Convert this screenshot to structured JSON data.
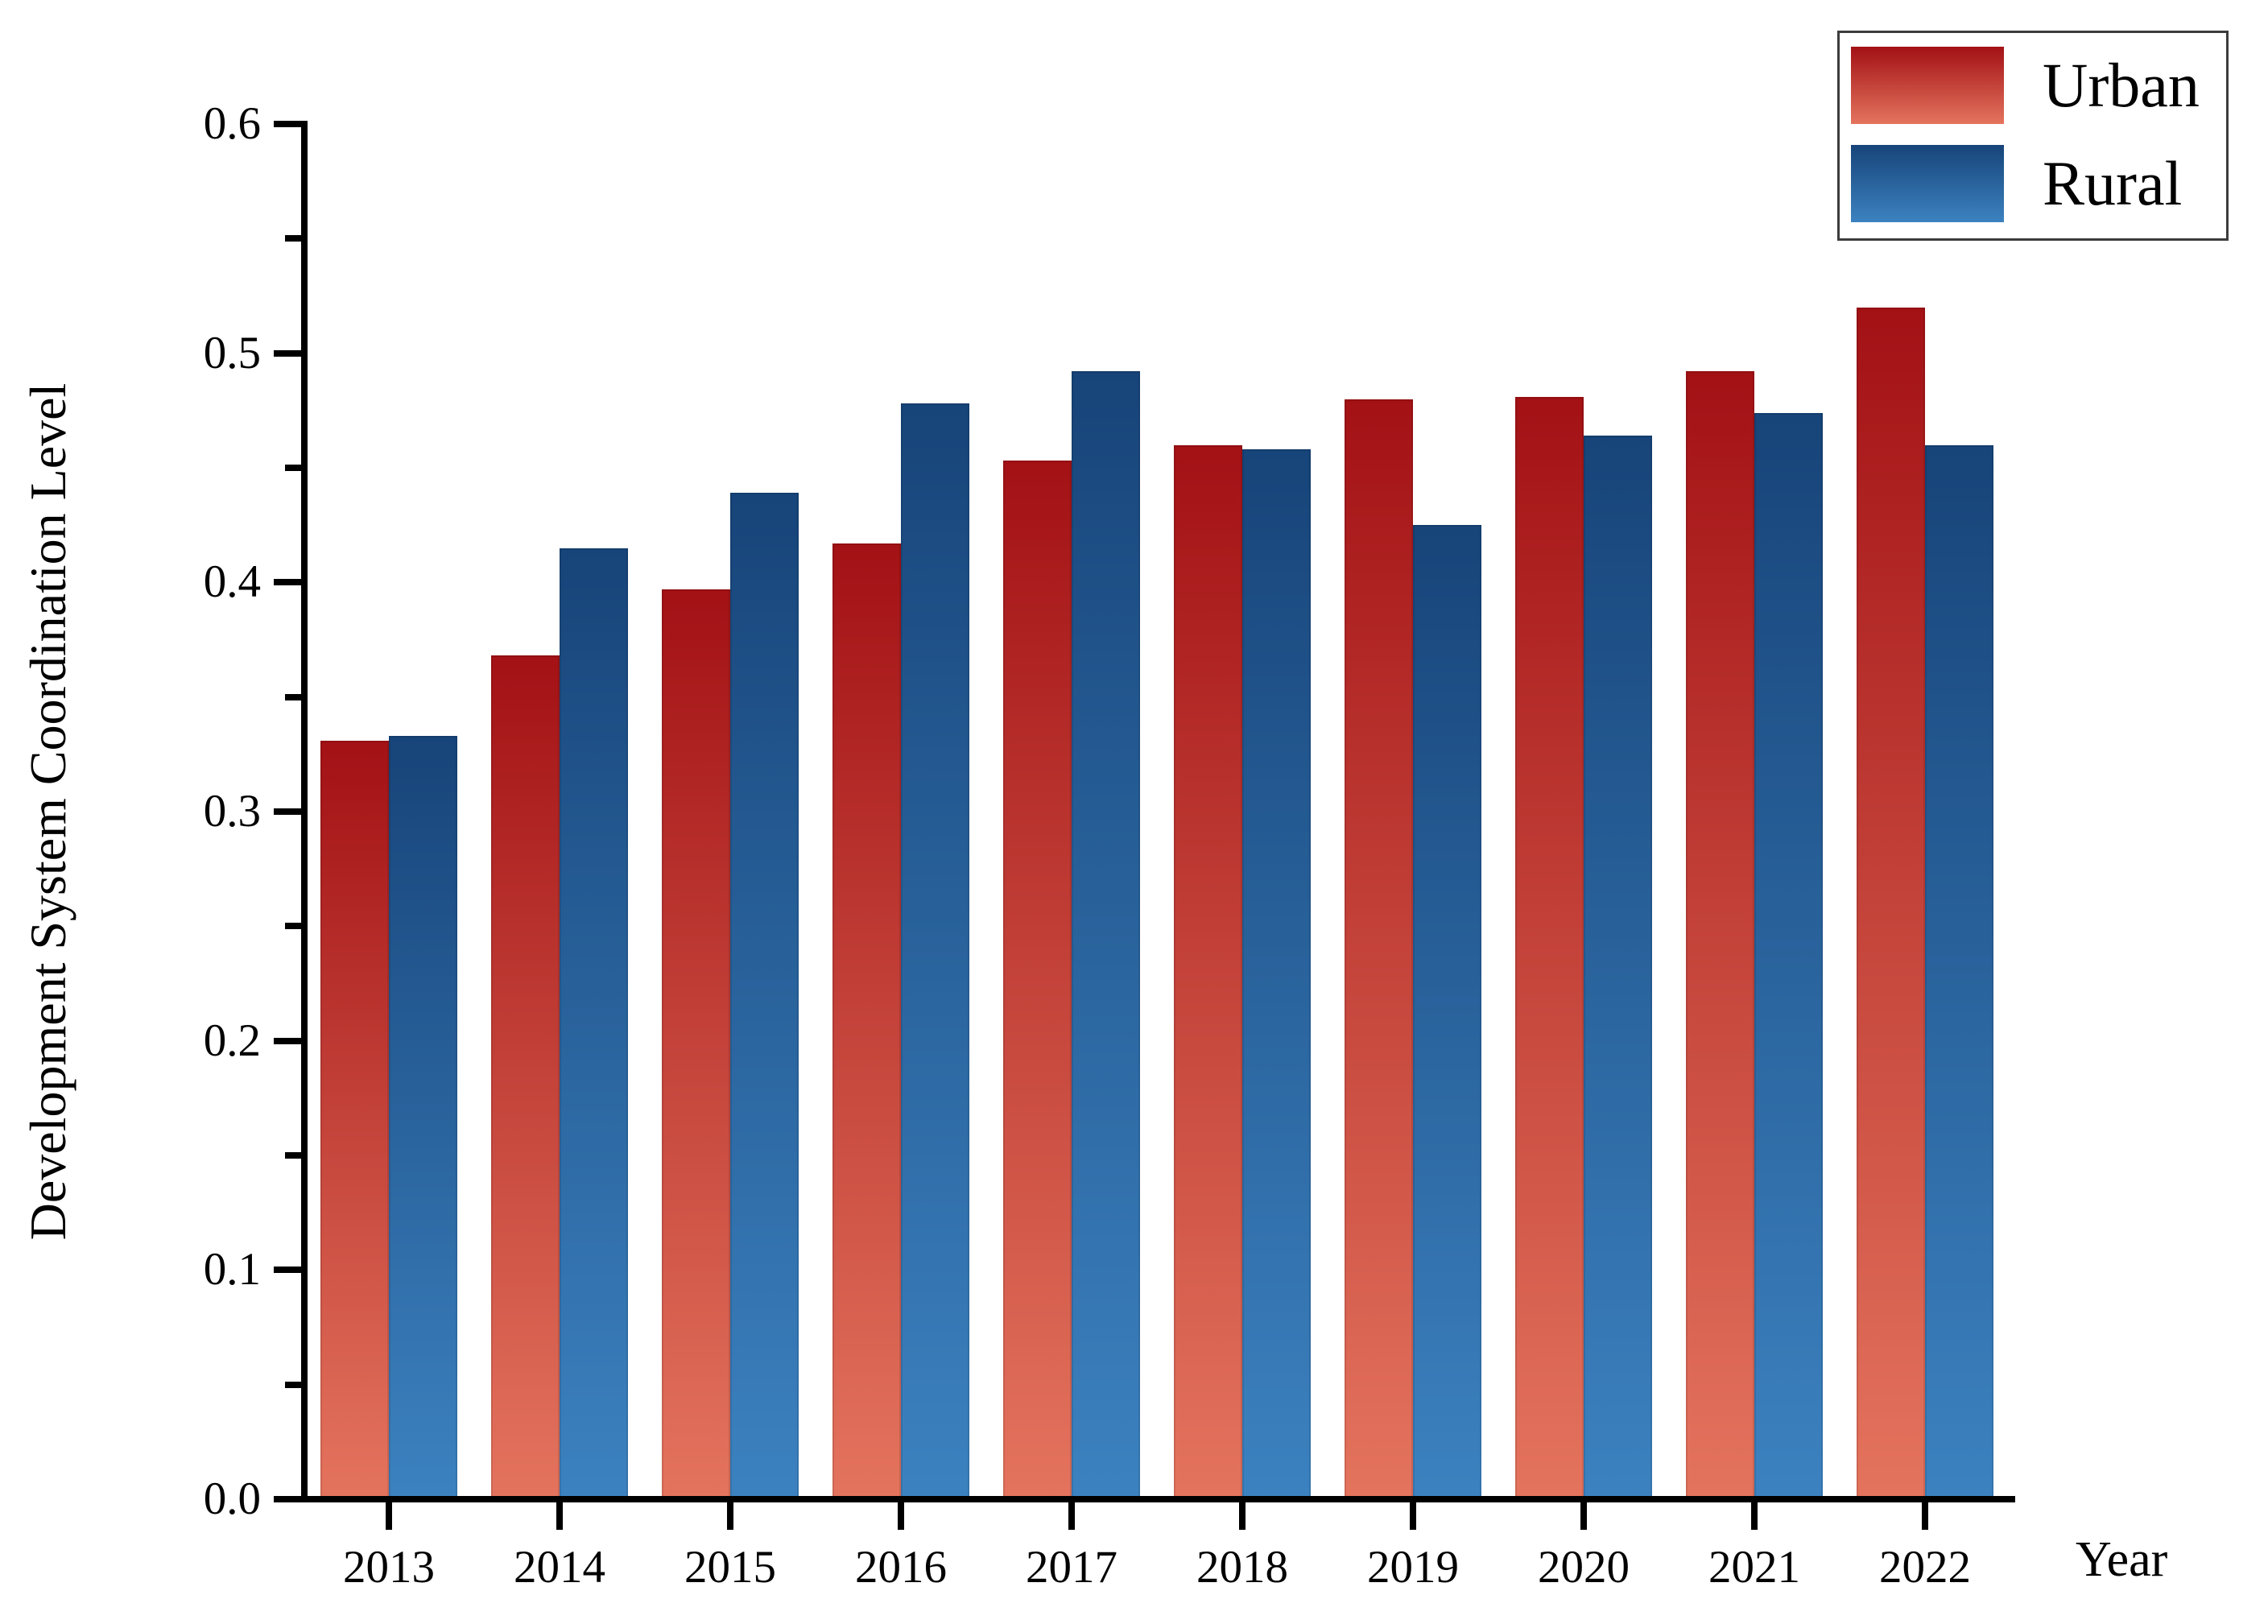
{
  "page": {
    "background": "#ffffff"
  },
  "chart_data": {
    "type": "bar",
    "title": "",
    "xlabel": "Year",
    "ylabel": "Development System Coordination Level",
    "categories": [
      "2013",
      "2014",
      "2015",
      "2016",
      "2017",
      "2018",
      "2019",
      "2020",
      "2021",
      "2022"
    ],
    "series": [
      {
        "name": "Urban",
        "values": [
          0.331,
          0.368,
          0.397,
          0.417,
          0.453,
          0.46,
          0.48,
          0.481,
          0.492,
          0.52
        ],
        "gradient_top": "#A31115",
        "gradient_bottom": "#E4745E"
      },
      {
        "name": "Rural",
        "values": [
          0.333,
          0.415,
          0.439,
          0.478,
          0.492,
          0.458,
          0.425,
          0.464,
          0.474,
          0.46
        ],
        "gradient_top": "#174479",
        "gradient_bottom": "#3C82C0"
      }
    ],
    "ylim": [
      0.0,
      0.6
    ],
    "ytick_labels": [
      "0.0",
      "0.1",
      "0.2",
      "0.3",
      "0.4",
      "0.5",
      "0.6"
    ],
    "minor_ytick_values": [
      0.05,
      0.15,
      0.25,
      0.35,
      0.45,
      0.55
    ],
    "grid": false,
    "legend_position": "top-right",
    "axis_color": "#000000",
    "text_color": "#000000"
  },
  "legend": {
    "border_color": "#3c3c3c",
    "items": [
      {
        "label": "Urban"
      },
      {
        "label": "Rural"
      }
    ]
  }
}
